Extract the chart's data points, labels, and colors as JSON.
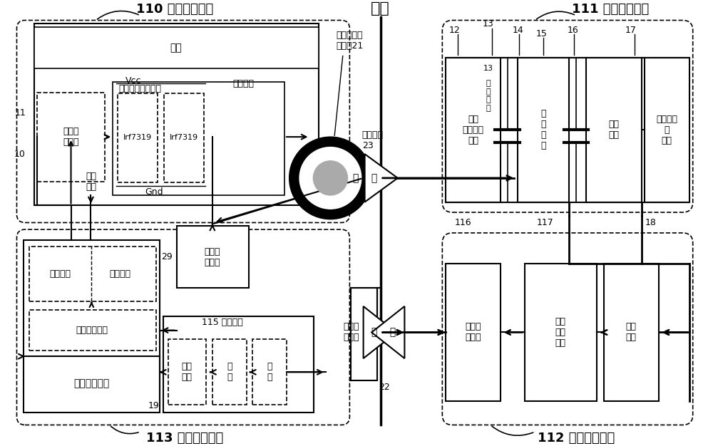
{
  "bg_color": "#ffffff",
  "labels": {
    "skin": "皮肤",
    "charge": "充    电",
    "comm": "通    信",
    "ext_power": "110 体外功率部分",
    "int_power": "111 体内功率部分",
    "ext_ctrl": "113 体外控制部分",
    "int_ctrl": "112 体内控制部分",
    "display": "显示",
    "ext_energy_circuit": "体外能量发射电路",
    "ext_energy_coil": "体外能量发\n射线在21",
    "sample_coil": "采样线圈\n23",
    "power_circuit": "功率电路",
    "vcc": "Vcc",
    "gnd": "Gnd",
    "irf1": "Irf7319",
    "irf2": "Irf7319",
    "drive_amp": "驱动放\n大电路",
    "drive_signal": "驱动\n信号",
    "int_energy_coil": "体内\n能量接收\n线圈",
    "resonance_cap_num": "13",
    "resonance_cap": "谐\n振\n电\n容",
    "rectifier": "整\n流\n电\n路",
    "regulator": "稳压\n芯片",
    "charge_battery": "充电电路\n和\n电池",
    "first_mcu": "第一微处理器",
    "emit_energy": "发射能量",
    "emit_adjust": "调整控制",
    "power_loop": "功率闭环控制",
    "sample_proc": "采样处\n理电路",
    "comm_circuit": "115 通信电路",
    "pulse_expand": "脉宽\n拓展",
    "shaping": "整\n形",
    "filter": "滤\n波",
    "ext_comm_coil": "体外通\n信线圈",
    "int_comm_coil": "体内通\n信线圈",
    "second_mcu": "第二\n微处\n理器",
    "feedback": "反馈\n电路",
    "num_11": "11",
    "num_10": "10",
    "num_12": "12",
    "num_13": "13",
    "num_14": "14",
    "num_15": "15",
    "num_16": "16",
    "num_17": "17",
    "num_18": "18",
    "num_19": "19",
    "num_22": "22",
    "num_29": "29",
    "num_116": "116",
    "num_117": "117"
  }
}
